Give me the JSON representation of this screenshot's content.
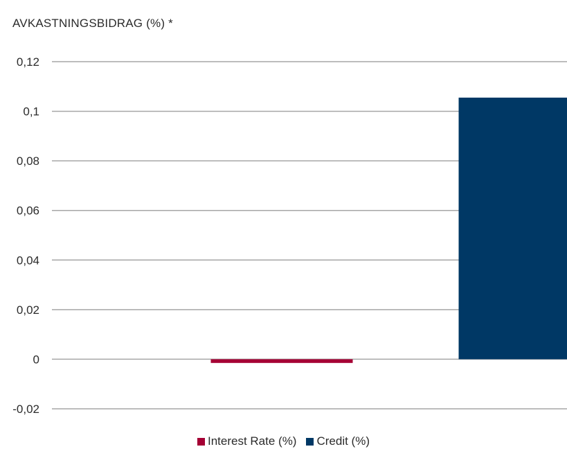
{
  "chart_data": {
    "type": "bar",
    "title": "AVKASTNINGSBIDRAG  (%)  *",
    "categories": [
      "Interest Rate (%)",
      "Credit (%)"
    ],
    "series": [
      {
        "name": "Interest Rate (%)",
        "values": [
          -0.0015,
          null
        ],
        "color": "#a50034"
      },
      {
        "name": "Credit (%)",
        "values": [
          null,
          0.1055
        ],
        "color": "#003865"
      }
    ],
    "ylim": [
      -0.02,
      0.12
    ],
    "yticks": [
      {
        "value": 0.12,
        "label": "0,12"
      },
      {
        "value": 0.1,
        "label": "0,1"
      },
      {
        "value": 0.08,
        "label": "0,08"
      },
      {
        "value": 0.06,
        "label": "0,06"
      },
      {
        "value": 0.04,
        "label": "0,04"
      },
      {
        "value": 0.02,
        "label": "0,02"
      },
      {
        "value": 0,
        "label": "0"
      },
      {
        "value": -0.02,
        "label": "-0,02"
      }
    ],
    "grid": true,
    "legend_position": "bottom"
  }
}
